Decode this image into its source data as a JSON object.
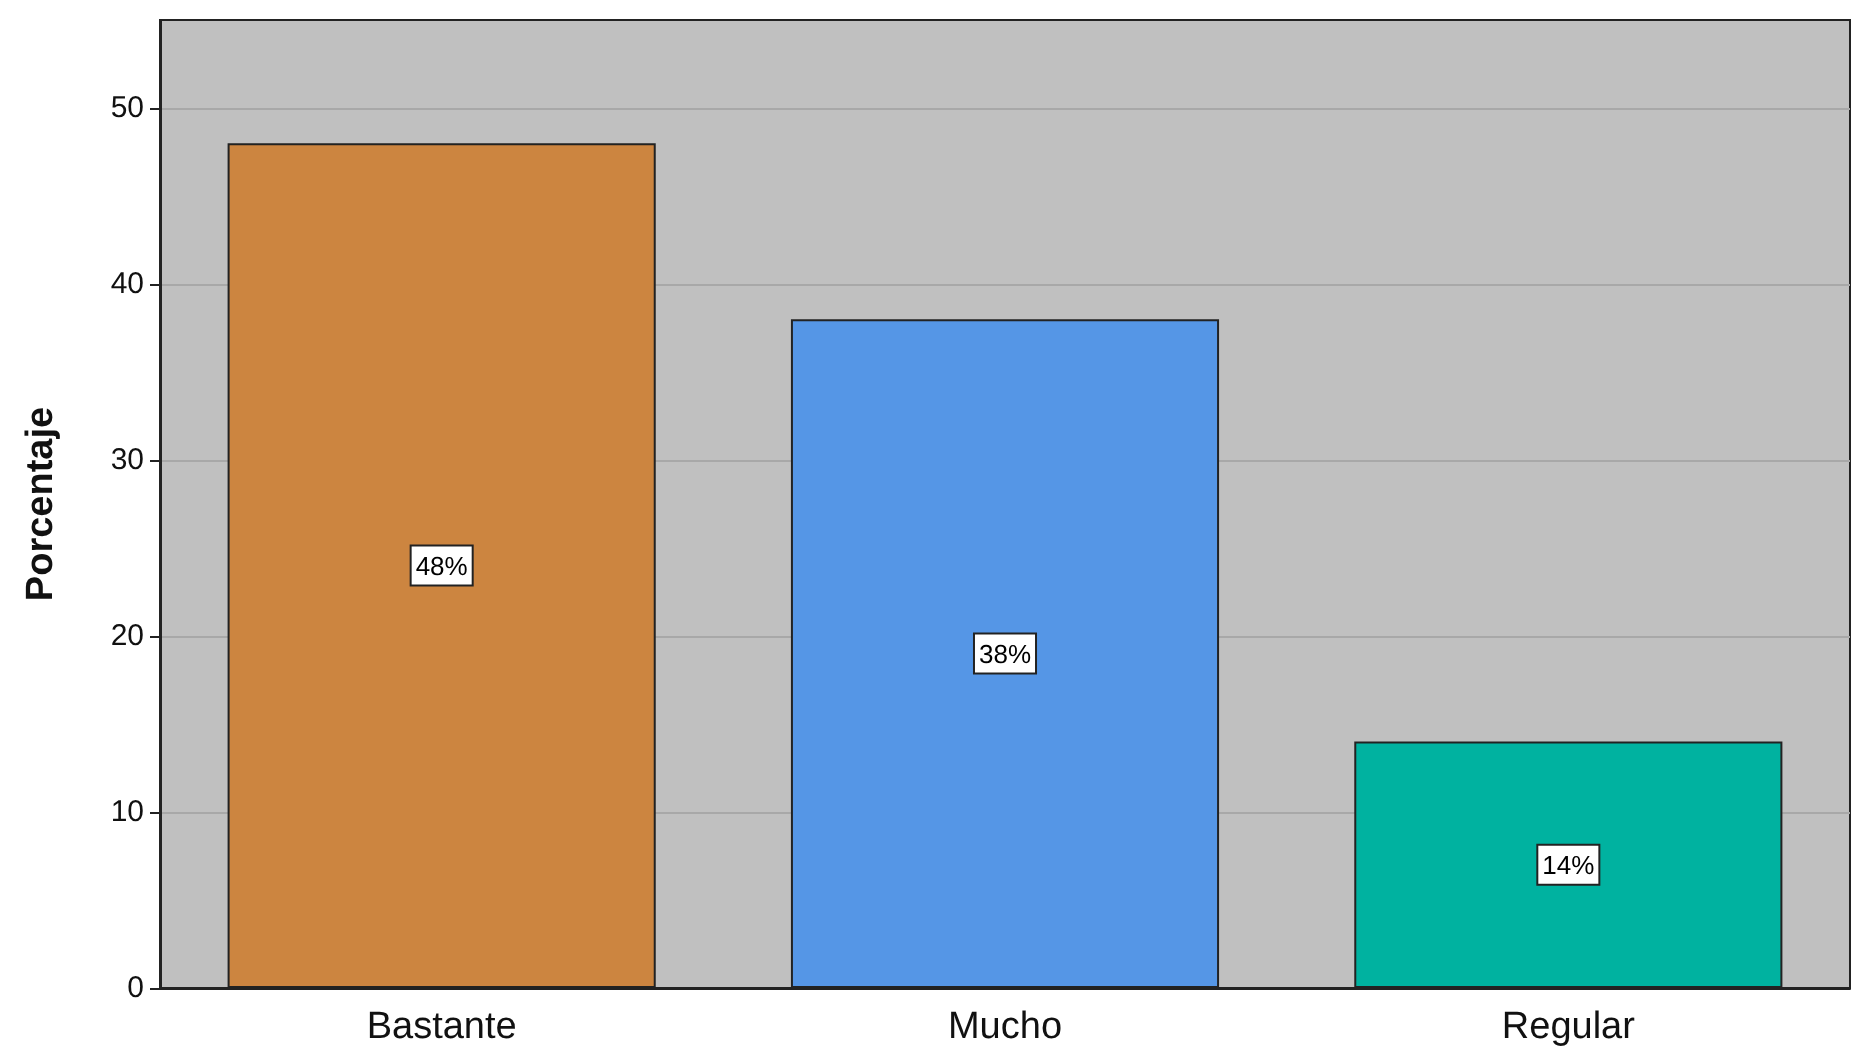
{
  "chart_data": {
    "type": "bar",
    "ylabel": "Porcentaje",
    "categories": [
      "Bastante",
      "Mucho",
      "Regular"
    ],
    "values": [
      48,
      38,
      14
    ],
    "colors": [
      "#cc8540",
      "#5596e6",
      "#00b2a0"
    ],
    "value_labels": [
      "48%",
      "38%",
      "14%"
    ],
    "ylim": [
      0,
      55
    ],
    "yticks": [
      0,
      10,
      20,
      30,
      40,
      50
    ],
    "grid": "y"
  }
}
